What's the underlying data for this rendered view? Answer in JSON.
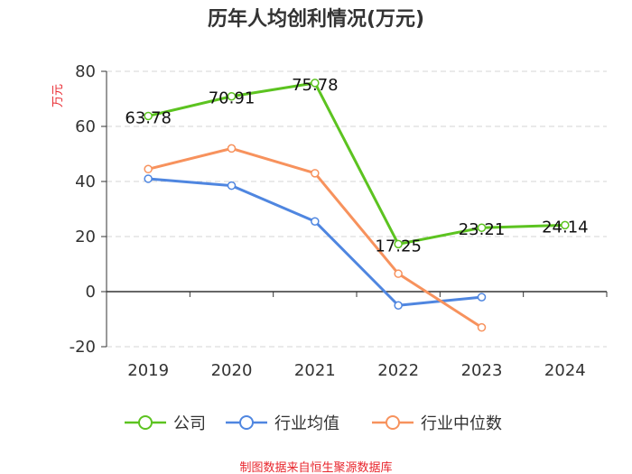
{
  "colors": {
    "company": "#5cc320",
    "industry_avg": "#4f86e0",
    "industry_median": "#f7925d",
    "axis": "#333333",
    "grid": "#d4d4d4",
    "source": "#e8262d",
    "unit": "#e8262d"
  },
  "chart_data": {
    "type": "line",
    "title": "历年人均创利情况(万元)",
    "ylabel": "万元",
    "categories": [
      "2019",
      "2020",
      "2021",
      "2022",
      "2023",
      "2024"
    ],
    "ylim": [
      -20,
      80
    ],
    "yticks": [
      -20,
      0,
      20,
      40,
      60,
      80
    ],
    "yticks_labels": [
      "-20",
      "0",
      "20",
      "40",
      "60",
      "80"
    ],
    "grid": true,
    "legend_position": "bottom",
    "series": [
      {
        "key": "company",
        "name": "公司",
        "values": [
          63.78,
          70.91,
          75.78,
          17.25,
          23.21,
          24.14
        ],
        "labels": [
          "63.78",
          "70.91",
          "75.78",
          "17.25",
          "23.21",
          "24.14"
        ]
      },
      {
        "key": "industry_avg",
        "name": "行业均值",
        "values": [
          41.0,
          38.5,
          25.5,
          -5.0,
          -2.0,
          null
        ]
      },
      {
        "key": "industry_median",
        "name": "行业中位数",
        "values": [
          44.5,
          52.0,
          43.0,
          6.5,
          -13.0,
          null
        ]
      }
    ]
  },
  "footer": {
    "source": "制图数据来自恒生聚源数据库"
  }
}
